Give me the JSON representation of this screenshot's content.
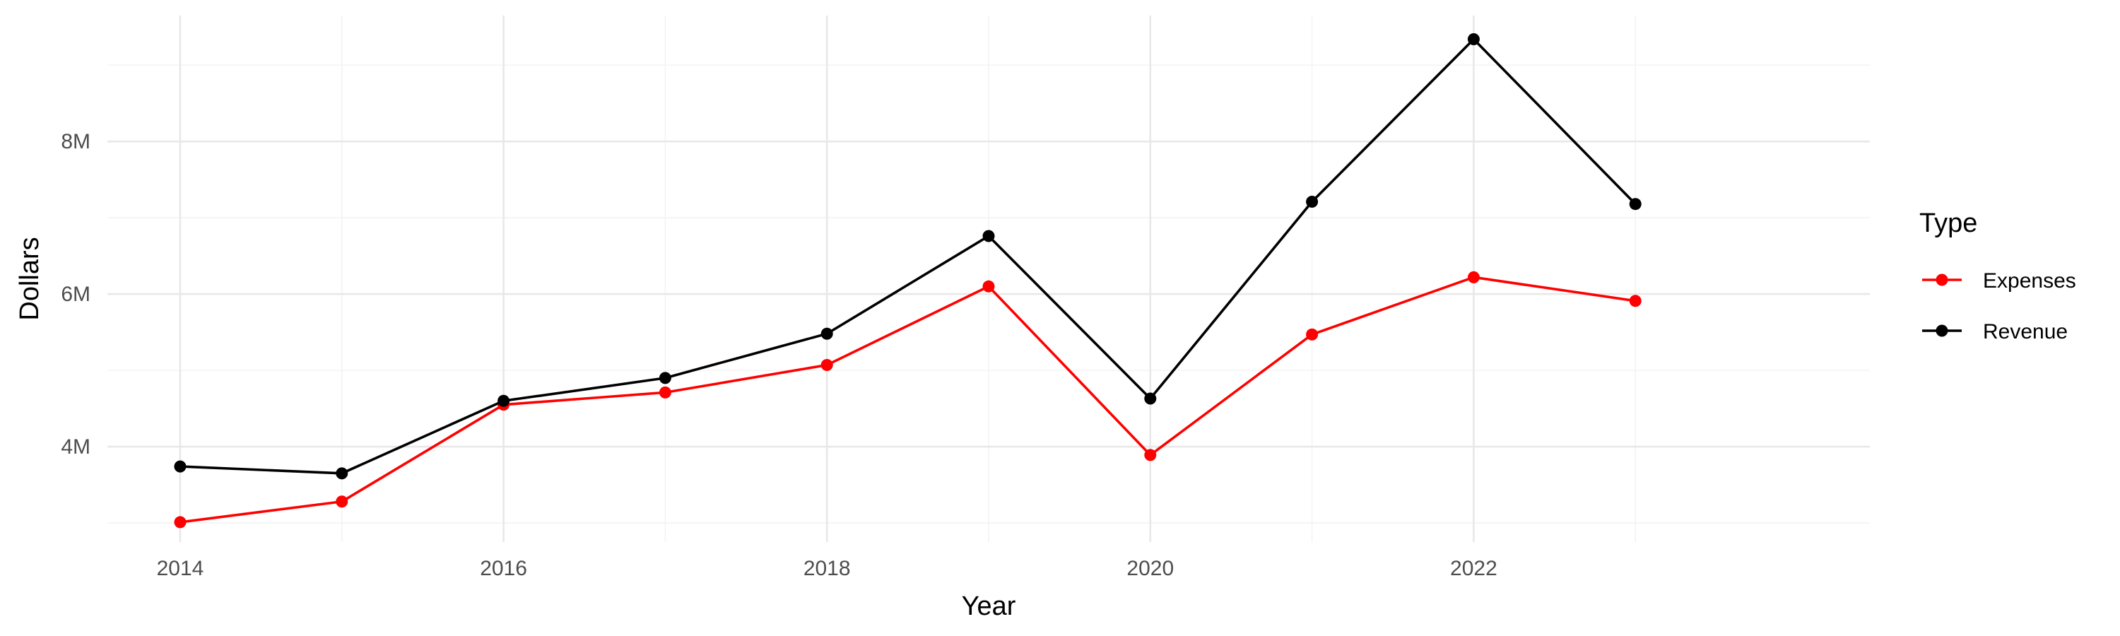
{
  "chart_data": {
    "type": "line",
    "title": "",
    "xlabel": "Year",
    "ylabel": "Dollars",
    "x": [
      2014,
      2015,
      2016,
      2017,
      2018,
      2019,
      2020,
      2021,
      2022,
      2023
    ],
    "x_ticks": [
      2014,
      2016,
      2018,
      2020,
      2022
    ],
    "x_tick_labels": [
      "2014",
      "2016",
      "2018",
      "2020",
      "2022"
    ],
    "y_ticks": [
      4000000,
      6000000,
      8000000
    ],
    "y_tick_labels": [
      "4M",
      "6M",
      "8M"
    ],
    "xlim": [
      2013.55,
      2024.45
    ],
    "ylim": [
      2750000,
      9650000
    ],
    "grid": true,
    "legend": {
      "title": "Type",
      "placement": "right"
    },
    "series": [
      {
        "name": "Expenses",
        "color": "#ff0000",
        "values": [
          3010000,
          3280000,
          4550000,
          4710000,
          5070000,
          6100000,
          3890000,
          5470000,
          6220000,
          5910000
        ]
      },
      {
        "name": "Revenue",
        "color": "#000000",
        "values": [
          3740000,
          3650000,
          4600000,
          4900000,
          5480000,
          6760000,
          4630000,
          7210000,
          9340000,
          7180000
        ]
      }
    ]
  }
}
